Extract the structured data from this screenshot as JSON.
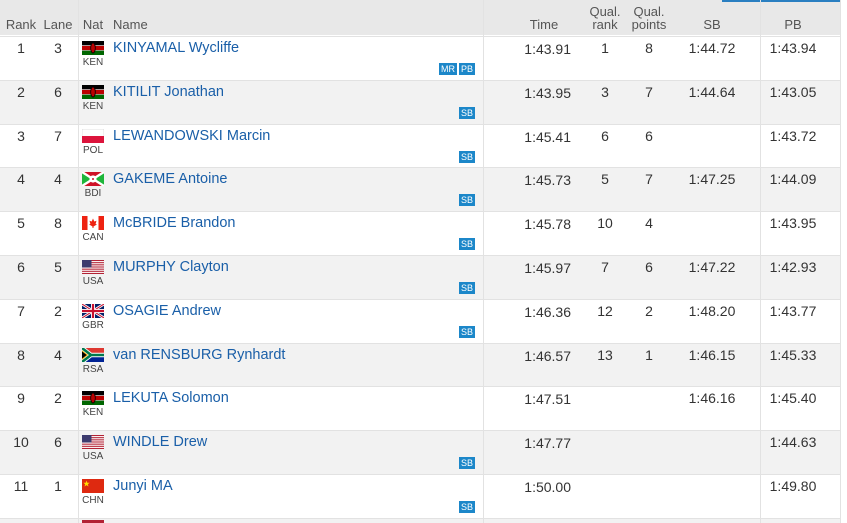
{
  "table": {
    "header": [
      "Rank",
      "Lane",
      "Nat",
      "Name",
      "Time",
      "Qual. rank",
      "Qual. points",
      "SB",
      "PB"
    ],
    "rows": [
      {
        "rank": 1,
        "lane": 3,
        "nat": "KEN",
        "name": "KINYAMAL Wycliffe",
        "badges": [
          "MR",
          "PB"
        ],
        "time": "1:43.91",
        "qual_rank": 1,
        "qual_points": 8,
        "sb": "1:44.72",
        "pb": "1:43.94"
      },
      {
        "rank": 2,
        "lane": 6,
        "nat": "KEN",
        "name": "KITILIT Jonathan",
        "badges": [
          "SB"
        ],
        "time": "1:43.95",
        "qual_rank": 3,
        "qual_points": 7,
        "sb": "1:44.64",
        "pb": "1:43.05"
      },
      {
        "rank": 3,
        "lane": 7,
        "nat": "POL",
        "name": "LEWANDOWSKI Marcin",
        "badges": [
          "SB"
        ],
        "time": "1:45.41",
        "qual_rank": 6,
        "qual_points": 6,
        "pb": "1:43.72"
      },
      {
        "rank": 4,
        "lane": 4,
        "nat": "BDI",
        "name": "GAKEME Antoine",
        "badges": [
          "SB"
        ],
        "time": "1:45.73",
        "qual_rank": 5,
        "qual_points": 7,
        "sb": "1:47.25",
        "pb": "1:44.09"
      },
      {
        "rank": 5,
        "lane": 8,
        "nat": "CAN",
        "name": "McBRIDE Brandon",
        "badges": [
          "SB"
        ],
        "time": "1:45.78",
        "qual_rank": 10,
        "qual_points": 4,
        "pb": "1:43.95"
      },
      {
        "rank": 6,
        "lane": 5,
        "nat": "USA",
        "name": "MURPHY Clayton",
        "badges": [
          "SB"
        ],
        "time": "1:45.97",
        "qual_rank": 7,
        "qual_points": 6,
        "sb": "1:47.22",
        "pb": "1:42.93"
      },
      {
        "rank": 7,
        "lane": 2,
        "nat": "GBR",
        "name": "OSAGIE Andrew",
        "badges": [
          "SB"
        ],
        "time": "1:46.36",
        "qual_rank": 12,
        "qual_points": 2,
        "sb": "1:48.20",
        "pb": "1:43.77"
      },
      {
        "rank": 8,
        "lane": 4,
        "nat": "RSA",
        "name": "van RENSBURG Rynhardt",
        "time": "1:46.57",
        "qual_rank": 13,
        "qual_points": 1,
        "sb": "1:46.15",
        "pb": "1:45.33"
      },
      {
        "rank": 9,
        "lane": 2,
        "nat": "KEN",
        "name": "LEKUTA Solomon",
        "time": "1:47.51",
        "sb": "1:46.16",
        "pb": "1:45.40"
      },
      {
        "rank": 10,
        "lane": 6,
        "nat": "USA",
        "name": "WINDLE Drew",
        "badges": [
          "SB"
        ],
        "time": "1:47.77",
        "pb": "1:44.63"
      },
      {
        "rank": 11,
        "lane": 1,
        "nat": "CHN",
        "name": "Junyi MA",
        "badges": [
          "SB"
        ],
        "time": "1:50.00",
        "pb": "1:49.80"
      }
    ]
  }
}
